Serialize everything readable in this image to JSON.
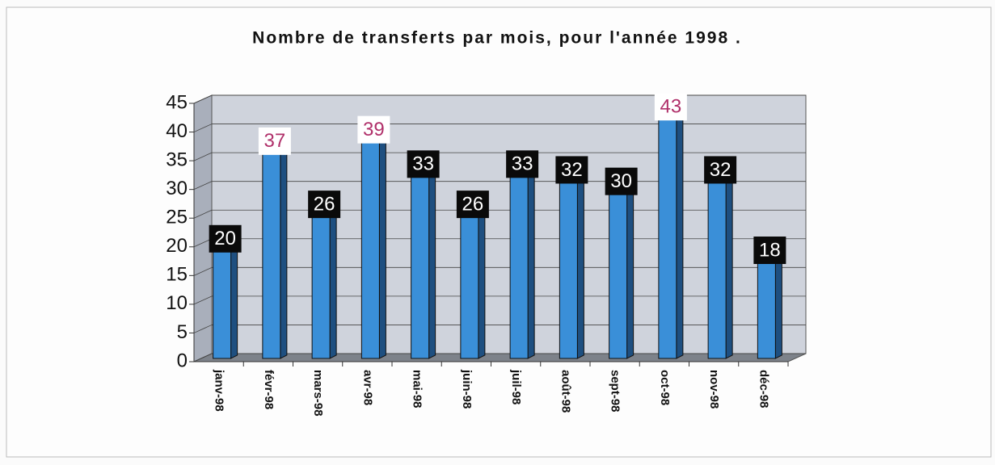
{
  "chart_data": {
    "type": "bar3d",
    "title": "Nombre de transferts par mois, pour l'année 1998 .",
    "categories": [
      "janv-98",
      "févr-98",
      "mars-98",
      "avr-98",
      "mai-98",
      "juin-98",
      "juil-98",
      "août-98",
      "sept-98",
      "oct-98",
      "nov-98",
      "déc-98"
    ],
    "values": [
      20,
      37,
      26,
      39,
      33,
      26,
      33,
      32,
      30,
      43,
      32,
      18
    ],
    "color": "#3a8fd8",
    "label_colors": [
      "#ffffff",
      "#b0306a",
      "#ffffff",
      "#b0306a",
      "#ffffff",
      "#ffffff",
      "#ffffff",
      "#ffffff",
      "#ffffff",
      "#b0306a",
      "#ffffff",
      "#ffffff"
    ],
    "ylim": [
      0,
      45
    ],
    "yticks": [
      0,
      5,
      10,
      15,
      20,
      25,
      30,
      35,
      40,
      45
    ],
    "grid": true
  }
}
